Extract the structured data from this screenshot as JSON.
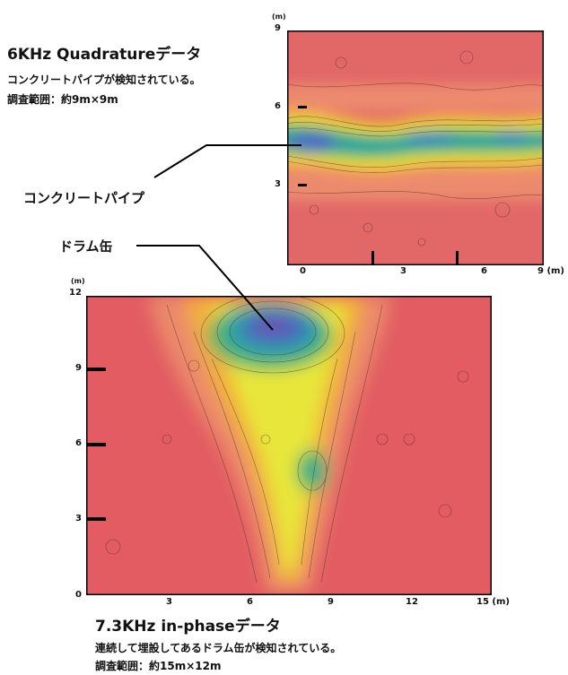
{
  "top_plot": {
    "title": "6KHz  Quadratureデータ",
    "desc1": "コンクリートパイプが検知されている。",
    "desc2": "調査範囲：約9m×9m",
    "y_unit": "(m)",
    "x_unit": "9 (m)",
    "y_ticks": [
      "9",
      "6",
      "3"
    ],
    "x_ticks": [
      "0",
      "3",
      "6"
    ]
  },
  "bottom_plot": {
    "title": "7.3KHz  in-phaseデータ",
    "desc1": "連続して埋設してあるドラム缶が検知されている。",
    "desc2": "調査範囲：約15m×12m",
    "y_unit": "(m)",
    "x_unit": "15 (m)",
    "y_ticks": [
      "12",
      "9",
      "6",
      "3",
      "0"
    ],
    "x_ticks": [
      "3",
      "6",
      "9",
      "12"
    ]
  },
  "annotations": {
    "pipe": "コンクリートパイプ",
    "drum": "ドラム缶"
  },
  "colors": {
    "background_low": "#df5a5a",
    "anomaly_high": "#5a4fae"
  }
}
